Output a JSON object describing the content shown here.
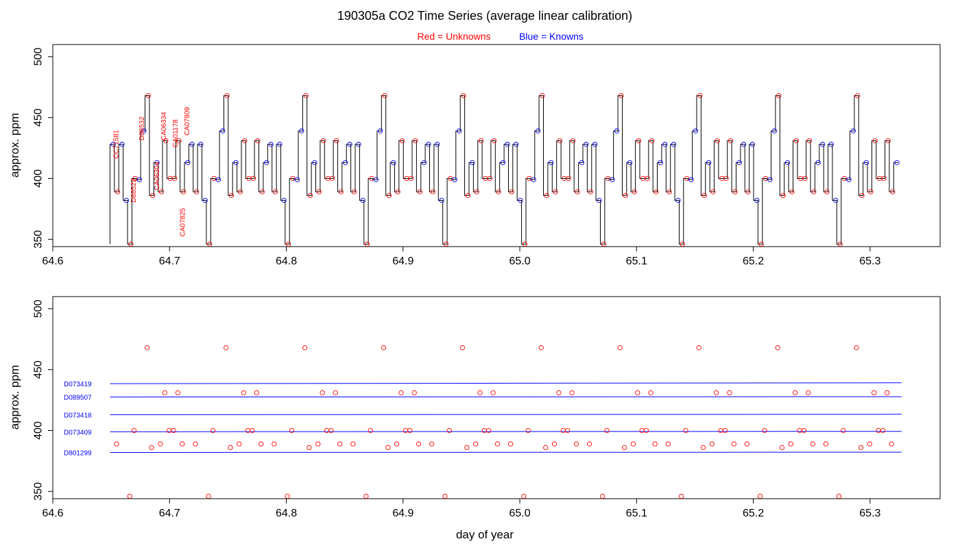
{
  "title": "190305a   CO2 Time Series (average linear calibration)",
  "legend": {
    "unknowns": "Red = Unknowns",
    "knowns": "Blue = Knowns"
  },
  "colors": {
    "unknown": "#ff0000",
    "known": "#0000ff",
    "trace": "#000000"
  },
  "x_axis": {
    "label": "day of year",
    "range": [
      64.6,
      65.36
    ],
    "ticks": [
      "64.6",
      "64.7",
      "64.8",
      "64.9",
      "65.0",
      "65.1",
      "65.2",
      "65.3"
    ]
  },
  "y_axis": {
    "label": "approx. ppm",
    "range": [
      344,
      510
    ],
    "ticks": [
      "350",
      "400",
      "450",
      "500"
    ]
  },
  "chart_data": [
    {
      "type": "line",
      "title": "190305a   CO2 Time Series (average linear calibration)",
      "ylabel": "approx. ppm",
      "xlim": [
        64.6,
        65.36
      ],
      "ylim": [
        344,
        510
      ],
      "step_levels_ppm": {
        "D073419": 439,
        "D089507": 428,
        "D073418": 413,
        "D073409": 399,
        "D801299": 382,
        "CC71581": 389,
        "D88532": 431,
        "D88529": 400,
        "CA06304": 400,
        "CA06334": 468,
        "CA01178": 389,
        "CA07809": 386,
        "CA07825": 346
      },
      "cycle_start_day": 64.649,
      "cycle_length_days": 0.0675,
      "cycle_count": 10,
      "cycle_sequence": [
        {
          "ref": "D089507",
          "role": "known"
        },
        {
          "ref": "CC71581",
          "role": "unknown"
        },
        {
          "ref": "D089507",
          "role": "known"
        },
        {
          "ref": "D801299",
          "role": "known"
        },
        {
          "ref": "CA07825",
          "role": "unknown"
        },
        {
          "ref": "D88529",
          "role": "unknown"
        },
        {
          "ref": "D073409",
          "role": "known"
        },
        {
          "ref": "D073419",
          "role": "known"
        },
        {
          "ref": "CA06334",
          "role": "unknown"
        },
        {
          "ref": "CA07809",
          "role": "unknown"
        },
        {
          "ref": "D073418",
          "role": "known"
        },
        {
          "ref": "CA01178",
          "role": "unknown"
        },
        {
          "ref": "D88532",
          "role": "unknown"
        },
        {
          "ref": "CA06304",
          "role": "unknown"
        },
        {
          "ref": "CA06304",
          "role": "unknown"
        },
        {
          "ref": "D88532",
          "role": "unknown"
        },
        {
          "ref": "CA01178",
          "role": "unknown"
        },
        {
          "ref": "D073418",
          "role": "known"
        }
      ],
      "annotations": [
        {
          "text": "CC71581",
          "x": 64.656,
          "y": 428
        },
        {
          "text": "D88529",
          "x": 64.671,
          "y": 390
        },
        {
          "text": "D88532",
          "x": 64.678,
          "y": 441
        },
        {
          "text": "CA06304",
          "x": 64.691,
          "y": 402
        },
        {
          "text": "CA06334",
          "x": 64.697,
          "y": 443
        },
        {
          "text": "CA01178",
          "x": 64.707,
          "y": 437
        },
        {
          "text": "CA07825",
          "x": 64.713,
          "y": 364
        },
        {
          "text": "CA07809",
          "x": 64.717,
          "y": 447
        }
      ]
    },
    {
      "type": "scatter",
      "xlabel": "day of year",
      "ylabel": "approx. ppm",
      "xlim": [
        64.6,
        65.36
      ],
      "ylim": [
        344,
        510
      ],
      "reference_lines": [
        {
          "label": "D073419",
          "y_start": 438.5,
          "y_end": 439.2,
          "x_start": 64.649,
          "x_end": 65.327
        },
        {
          "label": "D089507",
          "y_start": 427.5,
          "y_end": 427.8,
          "x_start": 64.649,
          "x_end": 65.327
        },
        {
          "label": "D073418",
          "y_start": 413.0,
          "y_end": 413.3,
          "x_start": 64.649,
          "x_end": 65.327
        },
        {
          "label": "D073409",
          "y_start": 399.0,
          "y_end": 399.3,
          "x_start": 64.649,
          "x_end": 65.327
        },
        {
          "label": "D801299",
          "y_start": 382.0,
          "y_end": 382.2,
          "x_start": 64.649,
          "x_end": 65.327
        }
      ],
      "unknown_points_source": "unknown steps of the cycle sequence in chart 1, plotted at their step midpoint day"
    }
  ]
}
